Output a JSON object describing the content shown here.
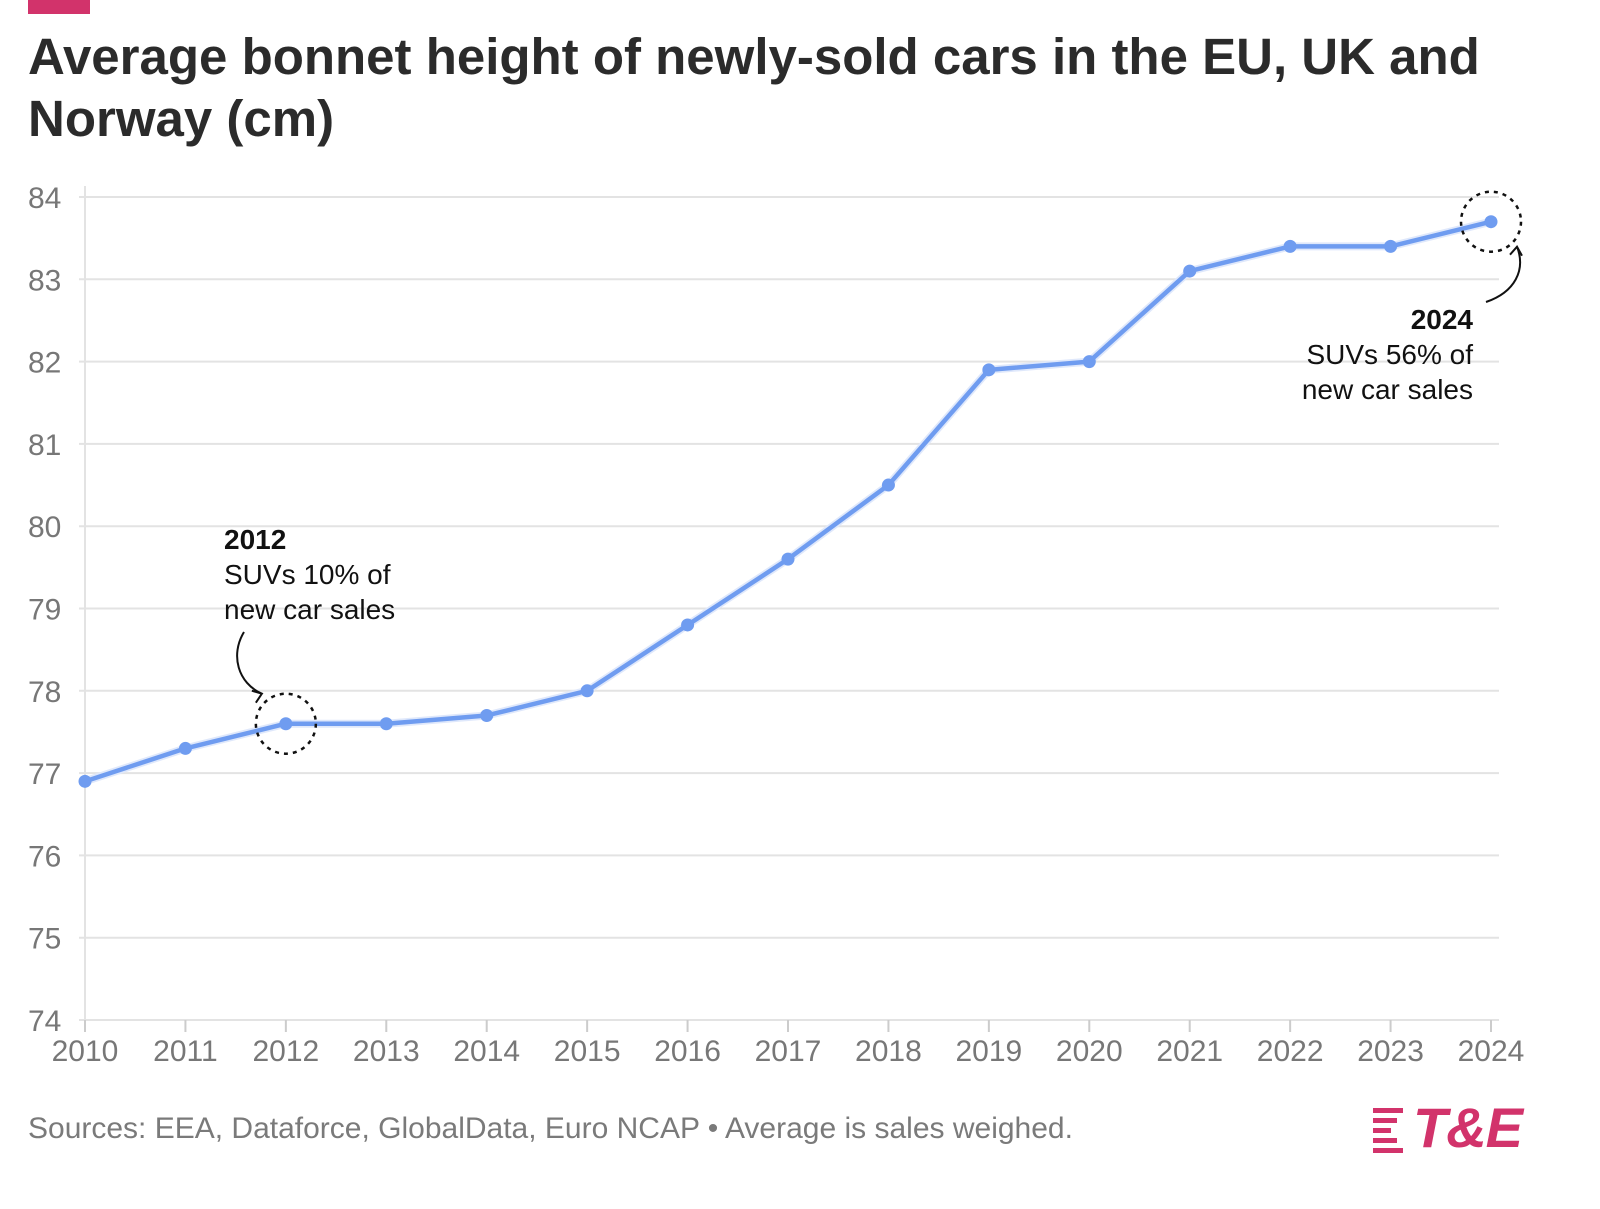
{
  "title": "Average bonnet height of newly-sold cars in the EU, UK and Norway (cm)",
  "source": "Sources: EEA, Dataforce, GlobalData, Euro NCAP • Average is sales weighed.",
  "logo_text": "T&E",
  "colors": {
    "line": "#6f9cf0",
    "accent": "#d2336b",
    "grid": "#e3e3e3",
    "tick_text": "#777777"
  },
  "chart_data": {
    "type": "line",
    "title": "Average bonnet height of newly-sold cars in the EU, UK and Norway (cm)",
    "xlabel": "",
    "ylabel": "",
    "x": [
      "2010",
      "2011",
      "2012",
      "2013",
      "2014",
      "2015",
      "2016",
      "2017",
      "2018",
      "2019",
      "2020",
      "2021",
      "2022",
      "2023",
      "2024"
    ],
    "series": [
      {
        "values": [
          76.9,
          77.3,
          77.6,
          77.6,
          77.7,
          78.0,
          78.8,
          79.6,
          80.5,
          81.9,
          82.0,
          83.1,
          83.4,
          83.4,
          83.7
        ]
      }
    ],
    "ylim": [
      74,
      84
    ],
    "yticks": [
      "74",
      "75",
      "76",
      "77",
      "78",
      "79",
      "80",
      "81",
      "82",
      "83",
      "84"
    ],
    "grid": true,
    "annotations": [
      {
        "x": "2012",
        "heading": "2012",
        "lines": [
          "SUVs 10% of",
          "new car sales"
        ]
      },
      {
        "x": "2024",
        "heading": "2024",
        "lines": [
          "SUVs 56% of",
          "new car sales"
        ]
      }
    ]
  }
}
